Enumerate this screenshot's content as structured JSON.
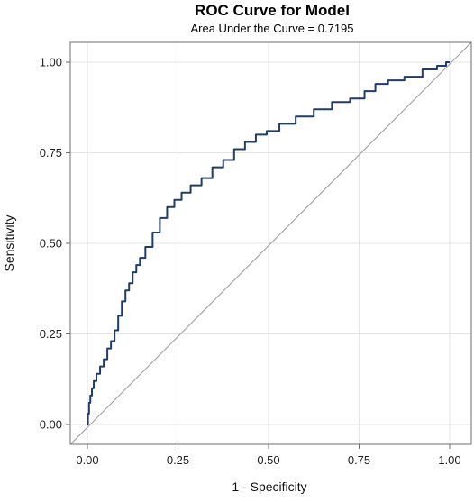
{
  "chart_data": {
    "type": "line",
    "title": "ROC Curve for Model",
    "subtitle": "Area Under the Curve = 0.7195",
    "xlabel": "1 - Specificity",
    "ylabel": "Sensitivity",
    "xlim": [
      0,
      1
    ],
    "ylim": [
      0,
      1
    ],
    "x_ticks": [
      0,
      0.25,
      0.5,
      0.75,
      1
    ],
    "x_tick_labels": [
      "0.00",
      "0.25",
      "0.50",
      "0.75",
      "1.00"
    ],
    "y_ticks": [
      0,
      0.25,
      0.5,
      0.75,
      1
    ],
    "y_tick_labels": [
      "0.00",
      "0.25",
      "0.50",
      "0.75",
      "1.00"
    ],
    "grid": true,
    "legend": "none",
    "colors": {
      "curve": "#1f3d6b",
      "diagonal": "#a6a6a6",
      "grid": "#e3e3e3",
      "frame": "#6e6e6e"
    },
    "series": [
      {
        "x": [
          0,
          0.003,
          0.006,
          0.01,
          0.015,
          0.02,
          0.03,
          0.04,
          0.05,
          0.06,
          0.07,
          0.08,
          0.09,
          0.1,
          0.11,
          0.12,
          0.13,
          0.14,
          0.15,
          0.17,
          0.19,
          0.21,
          0.23,
          0.25,
          0.27,
          0.3,
          0.33,
          0.36,
          0.39,
          0.42,
          0.45,
          0.48,
          0.51,
          0.55,
          0.6,
          0.65,
          0.7,
          0.75,
          0.78,
          0.81,
          0.85,
          0.9,
          0.95,
          0.98,
          1
        ],
        "y": [
          0,
          0.03,
          0.06,
          0.08,
          0.1,
          0.12,
          0.14,
          0.16,
          0.18,
          0.21,
          0.23,
          0.26,
          0.3,
          0.34,
          0.37,
          0.39,
          0.42,
          0.44,
          0.46,
          0.49,
          0.53,
          0.57,
          0.6,
          0.62,
          0.64,
          0.66,
          0.68,
          0.71,
          0.73,
          0.76,
          0.78,
          0.8,
          0.81,
          0.83,
          0.85,
          0.87,
          0.89,
          0.9,
          0.92,
          0.94,
          0.95,
          0.96,
          0.98,
          0.99,
          1
        ]
      },
      {
        "x": [
          0,
          1
        ],
        "y": [
          0,
          1
        ]
      }
    ]
  }
}
